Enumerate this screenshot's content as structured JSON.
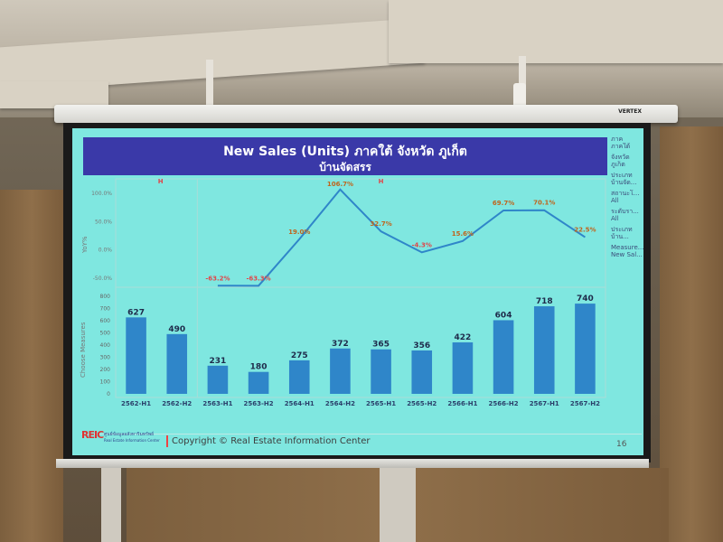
{
  "slide": {
    "title_line1": "New Sales (Units) ภาคใต้ จังหวัด ภูเก็ต",
    "title_line2": "บ้านจัดสรร",
    "filters": [
      "ภาค",
      "ภาคใต้",
      "จังหวัด",
      "ภูเก็ต",
      "ประเภท",
      "บ้านจัด...",
      "สถานะโ...",
      "All",
      "ระดับรา...",
      "All",
      "ประเภท",
      "บ้าน...",
      "Measure...",
      "New Sal..."
    ],
    "h_marker_left": "H",
    "h_marker_right": "H",
    "top_axis_label": "YoY%",
    "bottom_axis_label": "Choose Measures",
    "footer": {
      "logo_mark": "REIC",
      "logo_text": "ศูนย์ข้อมูลอสังหาริมทรัพย์",
      "logo_sub": "Real Estate Information Center",
      "copyright": "Copyright © Real Estate Information Center",
      "page_number": "16"
    },
    "brand": "VERTEX"
  },
  "chart_data": [
    {
      "type": "line",
      "ylabel": "YoY%",
      "ylim": [
        -50,
        100
      ],
      "yticks": [
        "100.0%",
        "50.0%",
        "0.0%",
        "-50.0%"
      ],
      "categories": [
        "2563-H1",
        "2563-H2",
        "2564-H1",
        "2564-H2",
        "2565-H1",
        "2565-H2",
        "2566-H1",
        "2566-H2",
        "2567-H1",
        "2567-H2"
      ],
      "values": [
        -63.2,
        -63.3,
        19.0,
        106.7,
        32.7,
        -4.3,
        15.6,
        69.7,
        70.1,
        22.5
      ],
      "labels": [
        "-63.2%",
        "-63.3%",
        "19.0%",
        "106.7%",
        "32.7%",
        "-4.3%",
        "15.6%",
        "69.7%",
        "70.1%",
        "22.5%"
      ],
      "color": "#2f86c9",
      "negative_label_color": "#e0464a"
    },
    {
      "type": "bar",
      "ylabel": "Choose Measures",
      "ylim": [
        0,
        800
      ],
      "yticks": [
        "800",
        "700",
        "600",
        "500",
        "400",
        "300",
        "200",
        "100",
        "0"
      ],
      "categories": [
        "2562-H1",
        "2562-H2",
        "2563-H1",
        "2563-H2",
        "2564-H1",
        "2564-H2",
        "2565-H1",
        "2565-H2",
        "2566-H1",
        "2566-H2",
        "2567-H1",
        "2567-H2"
      ],
      "values": [
        627,
        490,
        231,
        180,
        275,
        372,
        365,
        356,
        422,
        604,
        718,
        740
      ],
      "color": "#2f86c9"
    }
  ]
}
